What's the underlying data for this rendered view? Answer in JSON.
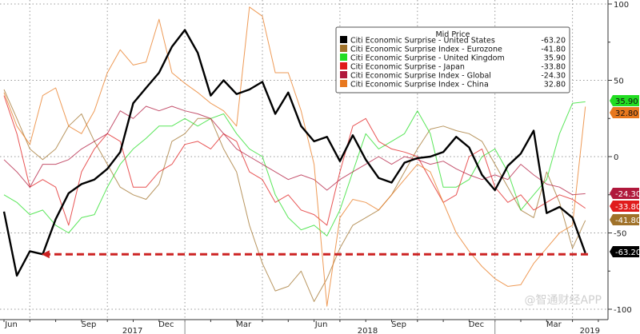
{
  "chart_data": {
    "type": "line",
    "title": "Mid Price",
    "x_start": "2017-06-01",
    "x_step_months": 0.5,
    "x_tick_labels": [
      {
        "label": "Jun",
        "month_index": 0
      },
      {
        "label": "Sep",
        "month_index": 3
      },
      {
        "label": "Dec",
        "month_index": 6
      },
      {
        "label": "Mar",
        "month_index": 9
      },
      {
        "label": "Jun",
        "month_index": 12
      },
      {
        "label": "Sep",
        "month_index": 15
      },
      {
        "label": "Dec",
        "month_index": 18
      },
      {
        "label": "Mar",
        "month_index": 21
      }
    ],
    "year_labels": [
      {
        "label": "2017",
        "month_index": 3.3
      },
      {
        "label": "2018",
        "month_index": 12.4
      },
      {
        "label": "2019",
        "month_index": 21
      }
    ],
    "y_ticks": [
      100,
      50,
      0,
      -50,
      -100
    ],
    "ylim": [
      -100,
      100
    ],
    "y_axis_side": "right",
    "grid": true,
    "legend_placement": "top-right",
    "series": [
      {
        "name": "Citi Economic Surprise - United States",
        "last": "-63.20",
        "color": "#000000",
        "width": 2.4,
        "values": [
          -36,
          -78,
          -62,
          -64,
          -41,
          -24,
          -18,
          -15,
          -8,
          3,
          35,
          45,
          55,
          72,
          83,
          68,
          40,
          50,
          41,
          44,
          49,
          28,
          42,
          20,
          10,
          13,
          -3,
          14,
          -2,
          -14,
          -17,
          -4,
          -1,
          0,
          3,
          13,
          6,
          -12,
          -22,
          -6,
          2,
          17,
          -37,
          -33,
          -40,
          -63.2
        ]
      },
      {
        "name": "Citi Economic Surprise Index - Eurozone",
        "last": "-41.80",
        "color": "#a0722a",
        "width": 1,
        "values": [
          44,
          25,
          5,
          -2,
          5,
          20,
          28,
          10,
          -5,
          -20,
          -25,
          -28,
          -18,
          10,
          15,
          25,
          25,
          5,
          -10,
          -45,
          -70,
          -88,
          -85,
          -75,
          -95,
          -80,
          -60,
          -45,
          -40,
          -35,
          -25,
          -10,
          5,
          18,
          20,
          17,
          15,
          10,
          -5,
          -20,
          -35,
          -40,
          -10,
          -30,
          -60,
          -41.8
        ]
      },
      {
        "name": "Citi Economic Surprise - United Kingdom",
        "last": "35.90",
        "color": "#22dd22",
        "width": 1,
        "values": [
          -25,
          -30,
          -38,
          -35,
          -45,
          -50,
          -40,
          -38,
          -20,
          -5,
          5,
          12,
          20,
          20,
          25,
          20,
          25,
          28,
          15,
          5,
          0,
          -25,
          -40,
          -48,
          -45,
          -52,
          -35,
          -10,
          15,
          5,
          10,
          15,
          30,
          15,
          -20,
          -20,
          -15,
          0,
          5,
          -10,
          -35,
          -25,
          -15,
          15,
          35,
          35.9
        ]
      },
      {
        "name": "Citi Economic Surprise - Japan",
        "last": "-33.80",
        "color": "#e01b1b",
        "width": 1,
        "values": [
          40,
          15,
          -20,
          -15,
          -20,
          -45,
          -10,
          5,
          15,
          10,
          -20,
          -20,
          -10,
          -5,
          8,
          10,
          5,
          15,
          10,
          -10,
          -15,
          -30,
          -25,
          -35,
          -38,
          -45,
          -10,
          20,
          25,
          10,
          5,
          3,
          0,
          -15,
          -30,
          -25,
          0,
          5,
          -20,
          -30,
          -25,
          -35,
          -30,
          -25,
          -28,
          -33.8
        ]
      },
      {
        "name": "Citi Economic Surprise Index - Global",
        "last": "-24.30",
        "color": "#b0183c",
        "width": 1,
        "values": [
          -2,
          -10,
          -20,
          -5,
          -5,
          -2,
          5,
          10,
          15,
          30,
          25,
          33,
          30,
          33,
          30,
          28,
          25,
          15,
          5,
          0,
          -5,
          -10,
          -15,
          -12,
          -15,
          -22,
          -15,
          -10,
          -5,
          0,
          -5,
          0,
          -2,
          -5,
          -3,
          -8,
          -12,
          -15,
          -12,
          -15,
          -5,
          -12,
          -18,
          -20,
          -25,
          -24.3
        ]
      },
      {
        "name": "Citi Economic Surprise Index - China",
        "last": "32.80",
        "color": "#e8781e",
        "width": 1,
        "values": [
          42,
          20,
          8,
          40,
          45,
          20,
          15,
          30,
          55,
          70,
          60,
          62,
          90,
          55,
          48,
          42,
          35,
          30,
          20,
          98,
          92,
          55,
          55,
          30,
          -5,
          -98,
          -40,
          -28,
          -30,
          -35,
          -25,
          -15,
          -5,
          -10,
          -30,
          -50,
          -62,
          -72,
          -80,
          -85,
          -84,
          -70,
          -60,
          -50,
          -45,
          32.8
        ]
      }
    ],
    "annotation": {
      "type": "dashed-arrow",
      "value": -64,
      "from_month_index": 22.6,
      "to_month_index": 1.45,
      "color": "#cc2222"
    }
  },
  "watermark": "@智通财经APP"
}
